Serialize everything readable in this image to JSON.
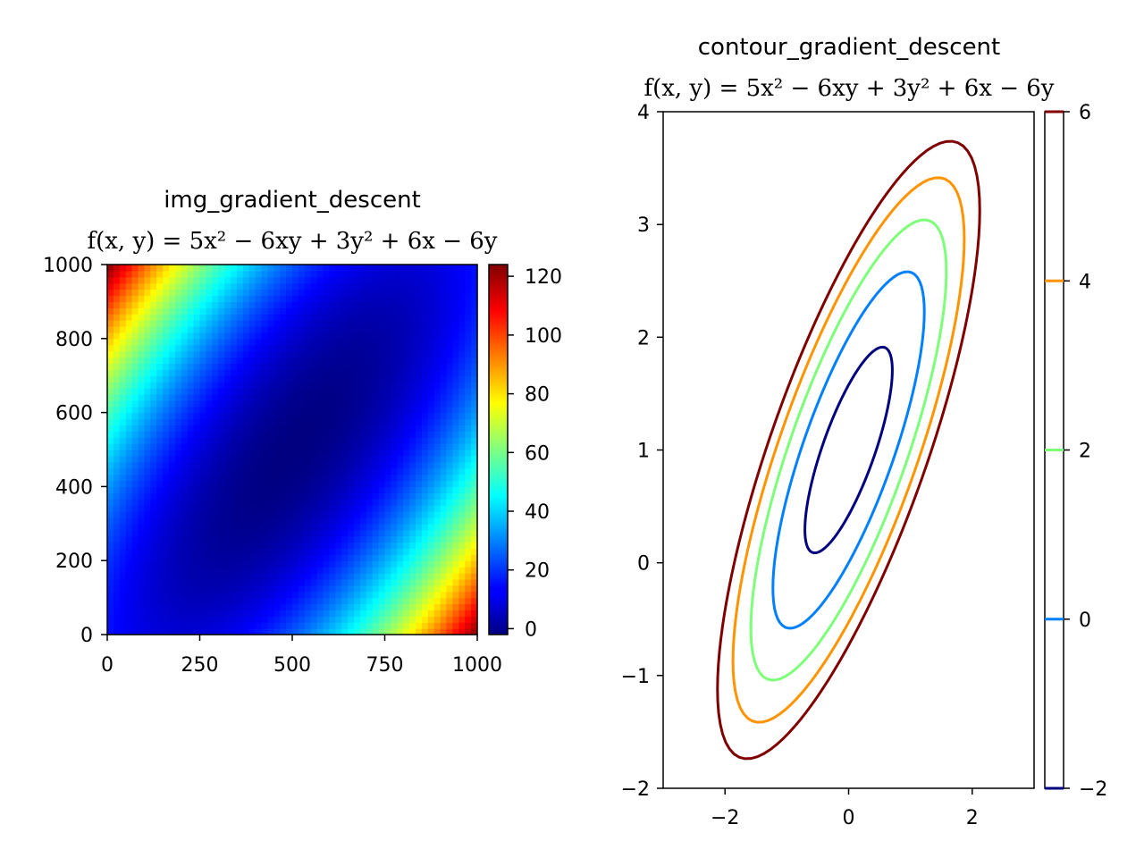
{
  "chart_data": [
    {
      "type": "heatmap",
      "title": "img_gradient_descent",
      "subtitle": "f(x, y) = 5x² − 6xy + 3y² + 6x − 6y",
      "xlabel": "",
      "ylabel": "",
      "xlim": [
        0,
        1000
      ],
      "ylim": [
        0,
        1000
      ],
      "x_ticks": [
        "0",
        "250",
        "500",
        "750",
        "1000"
      ],
      "y_ticks": [
        "0",
        "200",
        "400",
        "600",
        "800",
        "1000"
      ],
      "data_range_x": [
        -3,
        3
      ],
      "data_range_y": [
        -2,
        4
      ],
      "function_coefficients": {
        "x2": 5,
        "xy": -6,
        "y2": 3,
        "x": 6,
        "y": -6
      },
      "colormap": "jet",
      "colorbar": {
        "min": -3,
        "max": 123,
        "ticks": [
          "0",
          "20",
          "40",
          "60",
          "80",
          "100",
          "120"
        ]
      },
      "grid": false
    },
    {
      "type": "contour",
      "title": "contour_gradient_descent",
      "subtitle": "f(x, y) = 5x² − 6xy + 3y² + 6x − 6y",
      "xlabel": "",
      "ylabel": "",
      "xlim": [
        -3,
        3
      ],
      "ylim": [
        -2,
        4
      ],
      "x_ticks": [
        "−2",
        "0",
        "2"
      ],
      "y_ticks": [
        "−2",
        "−1",
        "0",
        "1",
        "2",
        "3",
        "4"
      ],
      "function_coefficients": {
        "x2": 5,
        "xy": -6,
        "y2": 3,
        "x": 6,
        "y": -6
      },
      "series": [
        {
          "level": -2,
          "color": "#000080"
        },
        {
          "level": 0,
          "color": "#0080ff"
        },
        {
          "level": 2,
          "color": "#7dff7a"
        },
        {
          "level": 4,
          "color": "#ff9400"
        },
        {
          "level": 6,
          "color": "#800000"
        }
      ],
      "colorbar": {
        "min": -2,
        "max": 6,
        "ticks": [
          "−2",
          "0",
          "2",
          "4",
          "6"
        ]
      },
      "grid": false
    }
  ]
}
